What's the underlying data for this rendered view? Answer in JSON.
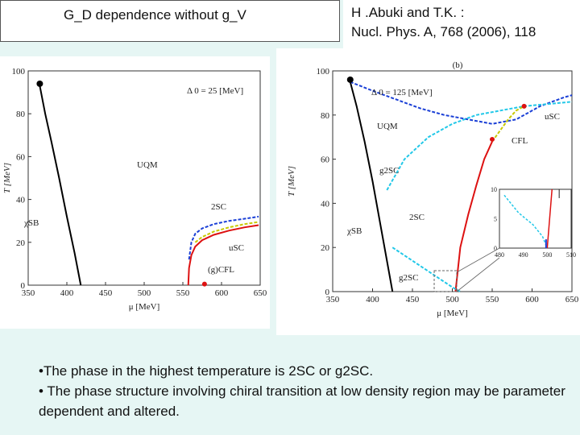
{
  "title": "G_D dependence without g_V",
  "citation": {
    "line1": "H .Abuki and T.K. :",
    "line2": "Nucl. Phys. A, 768 (2006), 118"
  },
  "bullets": [
    "•The phase in the highest temperature is  2SC or g2SC.",
    "•  The phase structure involving chiral transition at low density region may be parameter dependent and altered."
  ],
  "chart_data": [
    {
      "type": "line",
      "title": "",
      "xlabel": "μ [MeV]",
      "ylabel": "T [MeV]",
      "xlim": [
        350,
        650
      ],
      "ylim": [
        0,
        100
      ],
      "x_ticks": [
        "350",
        "400",
        "450",
        "500",
        "550",
        "600",
        "650"
      ],
      "y_ticks": [
        "0",
        "20",
        "40",
        "60",
        "80",
        "100"
      ],
      "annotation": "Δ 0 = 25 [MeV]",
      "region_labels": [
        "UQM",
        "χSB",
        "2SC",
        "uSC",
        "(g)CFL"
      ],
      "series": [
        {
          "color": "#000000",
          "x": [
            365,
            372,
            380,
            390,
            400,
            410,
            418
          ],
          "y": [
            93,
            80,
            67,
            50,
            32,
            15,
            0
          ]
        },
        {
          "color": "#1a3fd6",
          "x": [
            558,
            561,
            566,
            575,
            590,
            610,
            630,
            648
          ],
          "y": [
            12,
            20,
            24,
            26.5,
            28.5,
            30,
            31,
            32
          ]
        },
        {
          "color": "#d11",
          "x": [
            557,
            558,
            561,
            566,
            575,
            590,
            610,
            630,
            648
          ],
          "y": [
            0,
            8,
            14,
            18,
            21,
            23.5,
            25.5,
            27,
            28
          ]
        },
        {
          "color": "#c8c800",
          "x": [
            566,
            575,
            590,
            610,
            630,
            648
          ],
          "y": [
            20,
            22.5,
            25,
            27,
            28.5,
            29.5
          ]
        }
      ],
      "points": [
        {
          "x": 365,
          "y": 94,
          "color": "#000000"
        },
        {
          "x": 578,
          "y": 0.5,
          "color": "#d11"
        }
      ]
    },
    {
      "type": "line",
      "title": "(b)",
      "xlabel": "μ [MeV]",
      "ylabel": "T [MeV]",
      "xlim": [
        350,
        650
      ],
      "ylim": [
        0,
        100
      ],
      "x_ticks": [
        "350",
        "400",
        "450",
        "500",
        "550",
        "600",
        "650"
      ],
      "y_ticks": [
        "0",
        "20",
        "40",
        "60",
        "80",
        "100"
      ],
      "annotation": "Δ 0 = 125 [MeV]",
      "region_labels": [
        "UQM",
        "g2SC",
        "CFL",
        "uSC",
        "2SC",
        "χSB",
        "g2SC"
      ],
      "series": [
        {
          "color": "#000000",
          "x": [
            372,
            380,
            390,
            400,
            410,
            420,
            425
          ],
          "y": [
            95,
            84,
            68,
            50,
            30,
            10,
            0
          ]
        },
        {
          "color": "#1a3fd6",
          "x": [
            372,
            400,
            430,
            460,
            490,
            520,
            550,
            580,
            610,
            640,
            650
          ],
          "y": [
            95,
            91,
            87,
            83,
            80,
            78,
            76,
            78,
            84,
            88,
            89
          ]
        },
        {
          "color": "#22c8e8",
          "x": [
            418,
            440,
            470,
            500,
            530,
            560,
            590,
            620,
            650
          ],
          "y": [
            46,
            60,
            70,
            76,
            80,
            82,
            84,
            85,
            86
          ]
        },
        {
          "color": "#d11",
          "x": [
            504,
            510,
            520,
            530,
            540,
            550
          ],
          "y": [
            0,
            20,
            35,
            48,
            60,
            68
          ]
        },
        {
          "color": "#c8c800",
          "x": [
            550,
            560,
            570,
            580,
            590
          ],
          "y": [
            68,
            73,
            78,
            82,
            84
          ]
        },
        {
          "color": "#22c8e8",
          "x": [
            425,
            450,
            475,
            500,
            510
          ],
          "y": [
            20,
            14,
            8,
            2,
            0
          ]
        }
      ],
      "points": [
        {
          "x": 372,
          "y": 96,
          "color": "#000000"
        },
        {
          "x": 550,
          "y": 69,
          "color": "#d11"
        },
        {
          "x": 590,
          "y": 84,
          "color": "#d11"
        }
      ],
      "inset": {
        "xlim": [
          480,
          510
        ],
        "ylim": [
          0,
          10
        ],
        "x_ticks": [
          "480",
          "490",
          "500",
          "510"
        ],
        "y_ticks": [
          "0",
          "5",
          "10"
        ]
      }
    }
  ]
}
